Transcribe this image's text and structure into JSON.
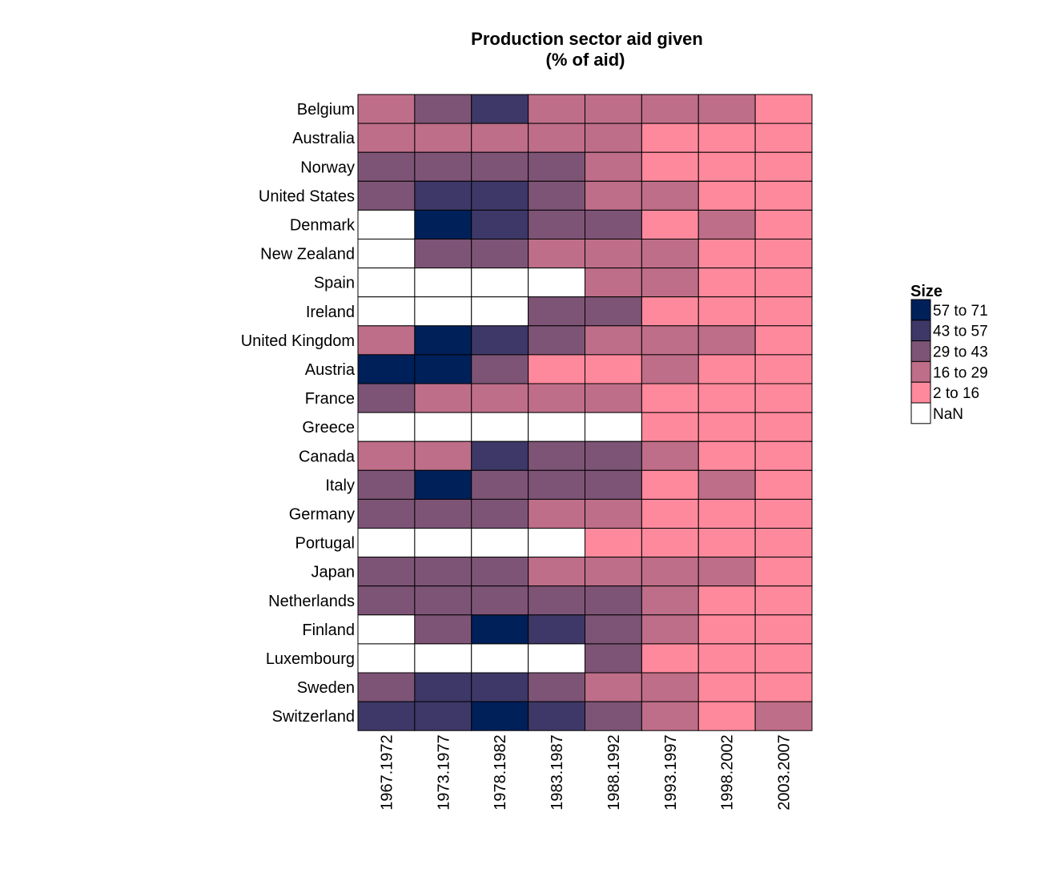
{
  "chart_data": {
    "type": "heatmap",
    "title": "Production sector aid given",
    "subtitle": "(% of aid)",
    "xlabel": "",
    "ylabel": "",
    "columns": [
      "1967.1972",
      "1973.1977",
      "1978.1982",
      "1983.1987",
      "1988.1992",
      "1993.1997",
      "1998.2002",
      "2003.2007"
    ],
    "rows": [
      "Belgium",
      "Australia",
      "Norway",
      "United States",
      "Denmark",
      "New Zealand",
      "Spain",
      "Ireland",
      "United Kingdom",
      "Austria",
      "France",
      "Greece",
      "Canada",
      "Italy",
      "Germany",
      "Portugal",
      "Japan",
      "Netherlands",
      "Finland",
      "Luxembourg",
      "Sweden",
      "Switzerland"
    ],
    "values": [
      [
        "16 to 29",
        "29 to 43",
        "43 to 57",
        "16 to 29",
        "16 to 29",
        "16 to 29",
        "16 to 29",
        "2 to 16"
      ],
      [
        "16 to 29",
        "16 to 29",
        "16 to 29",
        "16 to 29",
        "16 to 29",
        "2 to 16",
        "2 to 16",
        "2 to 16"
      ],
      [
        "29 to 43",
        "29 to 43",
        "29 to 43",
        "29 to 43",
        "16 to 29",
        "2 to 16",
        "2 to 16",
        "2 to 16"
      ],
      [
        "29 to 43",
        "43 to 57",
        "43 to 57",
        "29 to 43",
        "16 to 29",
        "16 to 29",
        "2 to 16",
        "2 to 16"
      ],
      [
        "NaN",
        "57 to 71",
        "43 to 57",
        "29 to 43",
        "29 to 43",
        "2 to 16",
        "16 to 29",
        "2 to 16"
      ],
      [
        "NaN",
        "29 to 43",
        "29 to 43",
        "16 to 29",
        "16 to 29",
        "16 to 29",
        "2 to 16",
        "2 to 16"
      ],
      [
        "NaN",
        "NaN",
        "NaN",
        "NaN",
        "16 to 29",
        "16 to 29",
        "2 to 16",
        "2 to 16"
      ],
      [
        "NaN",
        "NaN",
        "NaN",
        "29 to 43",
        "29 to 43",
        "2 to 16",
        "2 to 16",
        "2 to 16"
      ],
      [
        "16 to 29",
        "57 to 71",
        "43 to 57",
        "29 to 43",
        "16 to 29",
        "16 to 29",
        "16 to 29",
        "2 to 16"
      ],
      [
        "57 to 71",
        "57 to 71",
        "29 to 43",
        "2 to 16",
        "2 to 16",
        "16 to 29",
        "2 to 16",
        "2 to 16"
      ],
      [
        "29 to 43",
        "16 to 29",
        "16 to 29",
        "16 to 29",
        "16 to 29",
        "2 to 16",
        "2 to 16",
        "2 to 16"
      ],
      [
        "NaN",
        "NaN",
        "NaN",
        "NaN",
        "NaN",
        "2 to 16",
        "2 to 16",
        "2 to 16"
      ],
      [
        "16 to 29",
        "16 to 29",
        "43 to 57",
        "29 to 43",
        "29 to 43",
        "16 to 29",
        "2 to 16",
        "2 to 16"
      ],
      [
        "29 to 43",
        "57 to 71",
        "29 to 43",
        "29 to 43",
        "29 to 43",
        "2 to 16",
        "16 to 29",
        "2 to 16"
      ],
      [
        "29 to 43",
        "29 to 43",
        "29 to 43",
        "16 to 29",
        "16 to 29",
        "2 to 16",
        "2 to 16",
        "2 to 16"
      ],
      [
        "NaN",
        "NaN",
        "NaN",
        "NaN",
        "2 to 16",
        "2 to 16",
        "2 to 16",
        "2 to 16"
      ],
      [
        "29 to 43",
        "29 to 43",
        "29 to 43",
        "16 to 29",
        "16 to 29",
        "16 to 29",
        "16 to 29",
        "2 to 16"
      ],
      [
        "29 to 43",
        "29 to 43",
        "29 to 43",
        "29 to 43",
        "29 to 43",
        "16 to 29",
        "2 to 16",
        "2 to 16"
      ],
      [
        "NaN",
        "29 to 43",
        "57 to 71",
        "43 to 57",
        "29 to 43",
        "16 to 29",
        "2 to 16",
        "2 to 16"
      ],
      [
        "NaN",
        "NaN",
        "NaN",
        "NaN",
        "29 to 43",
        "2 to 16",
        "2 to 16",
        "2 to 16"
      ],
      [
        "29 to 43",
        "43 to 57",
        "43 to 57",
        "29 to 43",
        "16 to 29",
        "16 to 29",
        "2 to 16",
        "2 to 16"
      ],
      [
        "43 to 57",
        "43 to 57",
        "57 to 71",
        "43 to 57",
        "29 to 43",
        "16 to 29",
        "2 to 16",
        "16 to 29"
      ]
    ],
    "legend": {
      "title": "Size",
      "placement": "right",
      "items": [
        {
          "label": "57 to 71",
          "color": "#00205A"
        },
        {
          "label": "43 to 57",
          "color": "#3E3868"
        },
        {
          "label": "29 to 43",
          "color": "#7D5476"
        },
        {
          "label": "16 to 29",
          "color": "#BE6E88"
        },
        {
          "label": "2 to 16",
          "color": "#FF899C"
        },
        {
          "label": "NaN",
          "color": "#FFFFFF"
        }
      ]
    },
    "grid": false
  }
}
